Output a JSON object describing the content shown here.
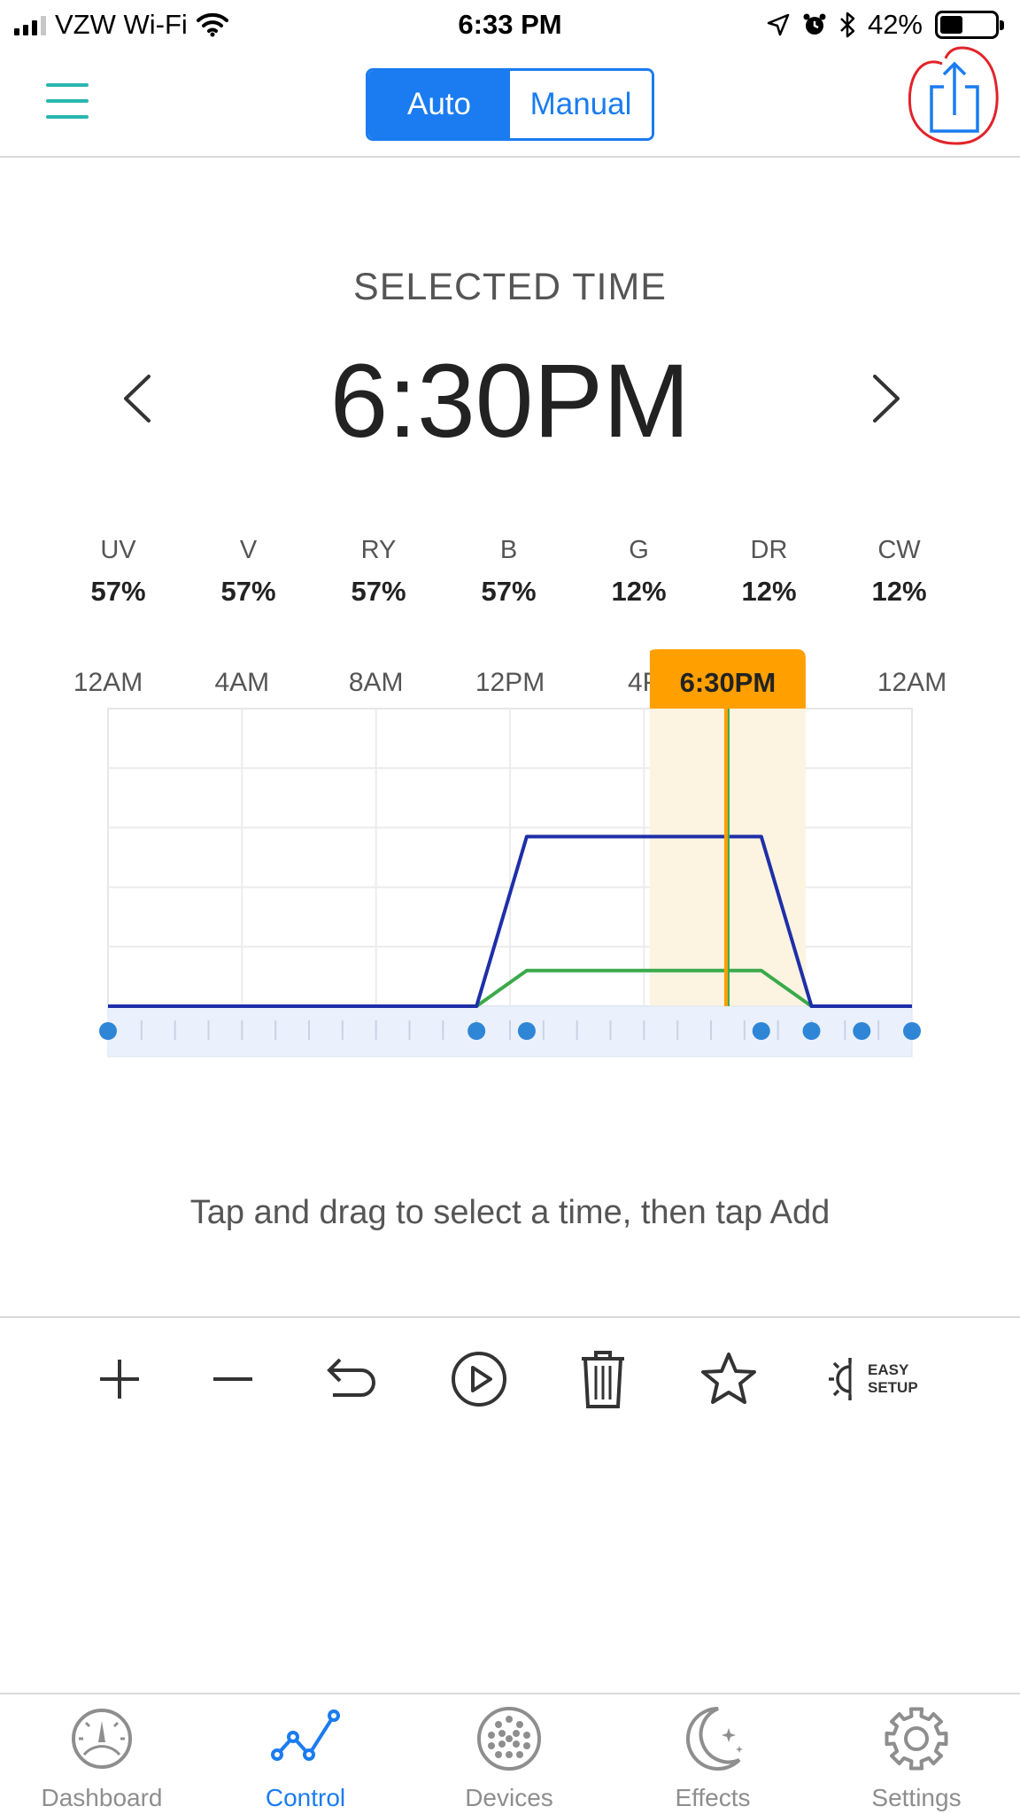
{
  "status_bar": {
    "carrier": "VZW Wi-Fi",
    "time": "6:33 PM",
    "battery": "42%",
    "battery_level": 0.42
  },
  "navbar": {
    "mode_auto": "Auto",
    "mode_manual": "Manual",
    "selected_mode": "Auto"
  },
  "selected": {
    "label": "SELECTED TIME",
    "time": "6:30PM"
  },
  "channels": [
    {
      "name": "UV",
      "value": "57%"
    },
    {
      "name": "V",
      "value": "57%"
    },
    {
      "name": "RY",
      "value": "57%"
    },
    {
      "name": "B",
      "value": "57%"
    },
    {
      "name": "G",
      "value": "12%"
    },
    {
      "name": "DR",
      "value": "12%"
    },
    {
      "name": "CW",
      "value": "12%"
    }
  ],
  "chart_data": {
    "type": "line",
    "x_ticks": [
      "12AM",
      "4AM",
      "8AM",
      "12PM",
      "4P",
      "",
      "12AM"
    ],
    "x_range": [
      0,
      24
    ],
    "y_range": [
      0,
      100
    ],
    "selected_time_label": "6:30PM",
    "selected_hour": 18.5,
    "series": [
      {
        "color": "#1f2fa8",
        "x": [
          0,
          11,
          12.5,
          19.5,
          21,
          24
        ],
        "y": [
          0,
          0,
          57,
          57,
          0,
          0
        ]
      },
      {
        "color": "#3aaa4a",
        "x": [
          0,
          11,
          12.5,
          19.5,
          21,
          24
        ],
        "y": [
          0,
          0,
          12,
          12,
          0,
          0
        ]
      }
    ],
    "point_hours": [
      0,
      11,
      12.5,
      19.5,
      21,
      22.5,
      24
    ]
  },
  "hint": "Tap and drag to select a time, then tap Add",
  "toolbar": {
    "easy_setup_line1": "EASY",
    "easy_setup_line2": "SETUP"
  },
  "tabs": [
    {
      "label": "Dashboard",
      "icon": "gauge-icon"
    },
    {
      "label": "Control",
      "icon": "line-graph-icon"
    },
    {
      "label": "Devices",
      "icon": "dots-grid-icon"
    },
    {
      "label": "Effects",
      "icon": "moon-stars-icon"
    },
    {
      "label": "Settings",
      "icon": "gear-icon"
    }
  ],
  "active_tab": "Control",
  "colors": {
    "accent": "#1a7cf0",
    "highlight": "#ff9f00",
    "menu": "#29b6b0"
  }
}
